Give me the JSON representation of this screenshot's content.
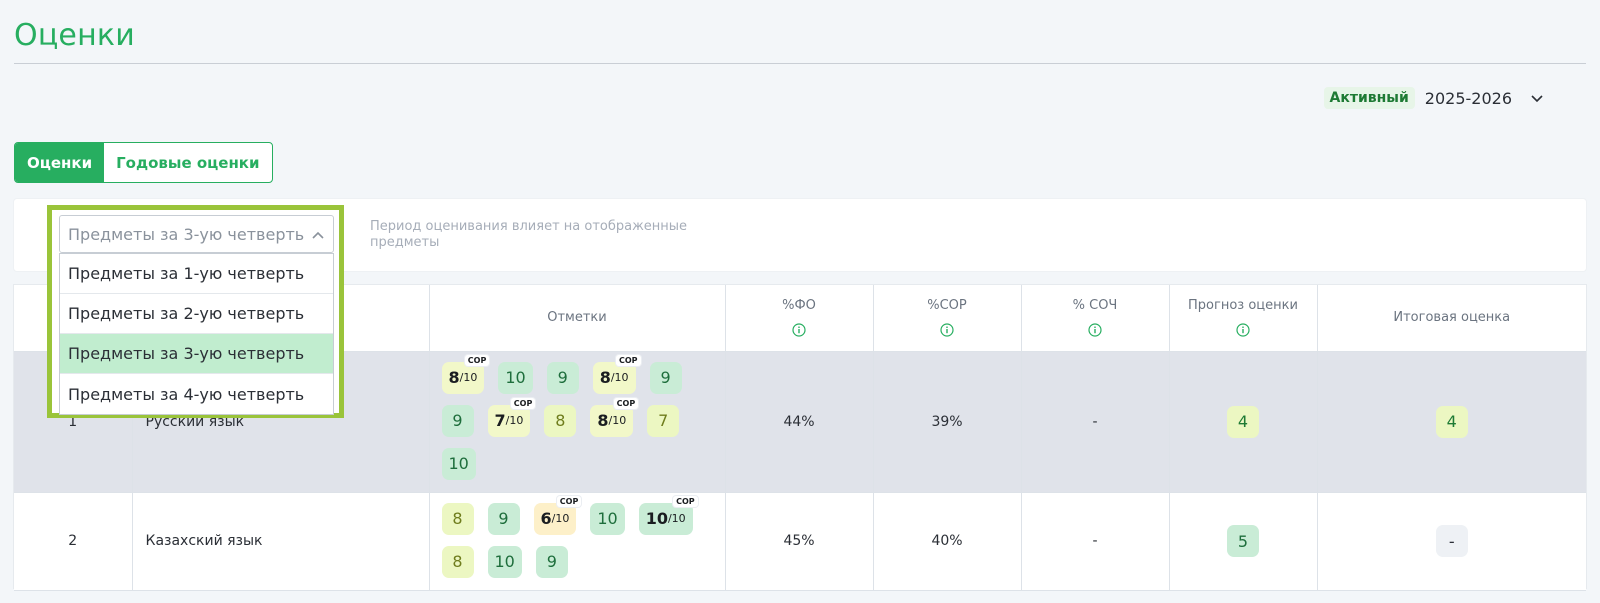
{
  "page": {
    "title": "Оценки"
  },
  "year": {
    "status": "Активный",
    "value": "2025-2026"
  },
  "tabs": [
    {
      "label": "Оценки",
      "active": true
    },
    {
      "label": "Годовые оценки",
      "active": false
    }
  ],
  "filter": {
    "selected": "Предметы за 3-ую четверть",
    "hint": "Период оценивания влияет на отображенные предметы",
    "options": [
      "Предметы за 1-ую четверть",
      "Предметы за 2-ую четверть",
      "Предметы за 3-ую четверть",
      "Предметы за 4-ую четверть"
    ],
    "highlighted_index": 2
  },
  "table": {
    "headers": {
      "marks": "Отметки",
      "fo": "%ФО",
      "sor": "%СОР",
      "soch": "% СОЧ",
      "forecast": "Прогноз оценки",
      "final": "Итоговая оценка"
    },
    "rows": [
      {
        "num": "1",
        "subject": "Русский язык",
        "marks": [
          {
            "kind": "sor",
            "value": "8",
            "den": "/10",
            "tag": "СОР",
            "tone": "lime"
          },
          {
            "kind": "fo",
            "value": "10",
            "tone": "green"
          },
          {
            "kind": "fo",
            "value": "9",
            "tone": "green"
          },
          {
            "kind": "sor",
            "value": "8",
            "den": "/10",
            "tag": "СОР",
            "tone": "lime"
          },
          {
            "kind": "fo",
            "value": "9",
            "tone": "green"
          },
          {
            "kind": "fo",
            "value": "9",
            "tone": "green"
          },
          {
            "kind": "sor",
            "value": "7",
            "den": "/10",
            "tag": "СОР",
            "tone": "lime"
          },
          {
            "kind": "fo",
            "value": "8",
            "tone": "lime"
          },
          {
            "kind": "sor",
            "value": "8",
            "den": "/10",
            "tag": "СОР",
            "tone": "lime"
          },
          {
            "kind": "fo",
            "value": "7",
            "tone": "lime"
          },
          {
            "kind": "fo",
            "value": "10",
            "tone": "green"
          }
        ],
        "fo": "44%",
        "sor": "39%",
        "soch": "-",
        "forecast": "4",
        "final": "4"
      },
      {
        "num": "2",
        "subject": "Казахский язык",
        "marks": [
          {
            "kind": "fo",
            "value": "8",
            "tone": "lime"
          },
          {
            "kind": "fo",
            "value": "9",
            "tone": "green"
          },
          {
            "kind": "sor",
            "value": "6",
            "den": "/10",
            "tag": "СОР",
            "tone": "orange"
          },
          {
            "kind": "fo",
            "value": "10",
            "tone": "green"
          },
          {
            "kind": "sor",
            "value": "10",
            "den": "/10",
            "tag": "СОР",
            "tone": "green"
          },
          {
            "kind": "fo",
            "value": "8",
            "tone": "lime"
          },
          {
            "kind": "fo",
            "value": "10",
            "tone": "green"
          },
          {
            "kind": "fo",
            "value": "9",
            "tone": "green"
          }
        ],
        "fo": "45%",
        "sor": "40%",
        "soch": "-",
        "forecast": "5",
        "final": "-"
      }
    ]
  },
  "colors": {
    "brand": "#27ae60",
    "highlight": "#9ac43a",
    "grade_green": "#c9ecd6",
    "grade_lime": "#ecf7c2",
    "grade_orange": "#fdf0c9"
  },
  "icons": {
    "info": "info-circle-icon",
    "chevron_down": "chevron-down-icon",
    "chevron_up": "chevron-up-icon"
  }
}
